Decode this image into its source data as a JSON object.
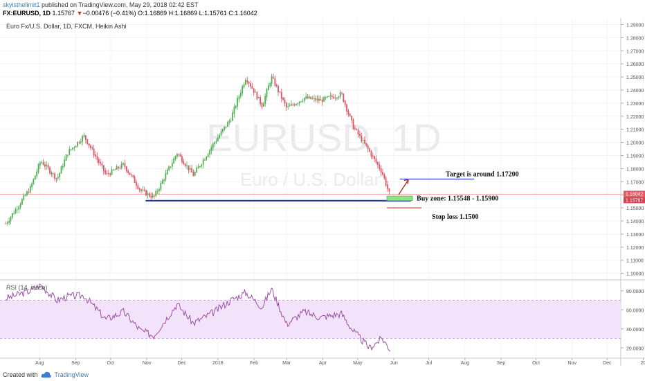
{
  "header": {
    "user": "skyisthelimit1",
    "published": " published on TradingView.com, May 29, 2018 02:42 EST",
    "symbol": "FX:EURUSD, 1D",
    "last": "1.15767",
    "change": "−0.00476 (−0.41%)",
    "ohlc": "O:1.16869 H:1.16869 L:1.15761 C:1.16042"
  },
  "legend": "Euro Fx/U.S. Dollar, 1D, FXCM, Heikin Ashi",
  "watermark": {
    "symbol": "EURUSD, 1D",
    "description": "Euro / U.S. Dollar"
  },
  "footer": {
    "created_with": "Created with",
    "brand": "TradingView"
  },
  "annotations": {
    "target": "Target is around 1.17200",
    "buy_zone": "Buy zone: 1.15548 - 1.15900",
    "stop_loss": "Stop loss 1.1500"
  },
  "price_badges": {
    "close": "1.16042",
    "last": "1.15767"
  },
  "colors": {
    "up": "#4caf50",
    "down": "#e05262",
    "rsi_line": "#9c4fa6",
    "rsi_band": "#f2e3fb",
    "support": "#1f2d9e",
    "target_line": "#2f3fd0",
    "stop_line": "#e53935",
    "buy_zone_fill": "#8ee58c"
  },
  "chart_data": {
    "type": "candlestick",
    "style": "Heikin Ashi",
    "title": "Euro Fx/U.S. Dollar, 1D, FXCM, Heikin Ashi",
    "x_tick_labels": [
      "Aug",
      "Sep",
      "Oct",
      "Nov",
      "Dec",
      "2018",
      "Feb",
      "Mar",
      "Apr",
      "May",
      "Jun",
      "Jul",
      "Aug",
      "Sep",
      "Oct",
      "Nov",
      "Dec",
      "20"
    ],
    "y_tick_labels": [
      "1.29000",
      "1.28000",
      "1.27000",
      "1.26000",
      "1.25000",
      "1.24000",
      "1.23000",
      "1.22000",
      "1.21000",
      "1.20000",
      "1.19000",
      "1.18000",
      "1.17000",
      "1.16000",
      "1.15000",
      "1.14000",
      "1.13000",
      "1.12000",
      "1.11000",
      "1.10000"
    ],
    "ylim": [
      1.095,
      1.295
    ],
    "price_path": [
      [
        "2017-07-03",
        1.138
      ],
      [
        "2017-07-24",
        1.165
      ],
      [
        "2017-08-02",
        1.186
      ],
      [
        "2017-08-16",
        1.172
      ],
      [
        "2017-08-25",
        1.192
      ],
      [
        "2017-09-08",
        1.205
      ],
      [
        "2017-09-27",
        1.175
      ],
      [
        "2017-10-12",
        1.183
      ],
      [
        "2017-10-27",
        1.163
      ],
      [
        "2017-11-07",
        1.158
      ],
      [
        "2017-11-27",
        1.192
      ],
      [
        "2017-12-11",
        1.175
      ],
      [
        "2017-12-29",
        1.2
      ],
      [
        "2018-01-12",
        1.218
      ],
      [
        "2018-01-25",
        1.25
      ],
      [
        "2018-02-08",
        1.228
      ],
      [
        "2018-02-16",
        1.25
      ],
      [
        "2018-03-01",
        1.226
      ],
      [
        "2018-03-16",
        1.234
      ],
      [
        "2018-03-30",
        1.232
      ],
      [
        "2018-04-17",
        1.237
      ],
      [
        "2018-04-27",
        1.212
      ],
      [
        "2018-05-11",
        1.193
      ],
      [
        "2018-05-22",
        1.177
      ],
      [
        "2018-05-29",
        1.158
      ]
    ],
    "levels": {
      "support": 1.15548,
      "buy_zone": [
        1.15548,
        1.159
      ],
      "target": 1.172,
      "stop_loss": 1.15
    },
    "rsi": {
      "label": "RSI (14, close)",
      "y_tick_labels": [
        "80.0000",
        "60.0000",
        "40.0000",
        "20.0000"
      ],
      "band": [
        30,
        70
      ],
      "ylim": [
        10,
        90
      ],
      "path": [
        [
          "2017-07-03",
          72
        ],
        [
          "2017-07-24",
          80
        ],
        [
          "2017-08-02",
          86
        ],
        [
          "2017-08-16",
          70
        ],
        [
          "2017-08-25",
          74
        ],
        [
          "2017-09-08",
          75
        ],
        [
          "2017-09-27",
          50
        ],
        [
          "2017-10-12",
          58
        ],
        [
          "2017-10-27",
          38
        ],
        [
          "2017-11-07",
          33
        ],
        [
          "2017-11-27",
          66
        ],
        [
          "2017-12-11",
          46
        ],
        [
          "2017-12-29",
          58
        ],
        [
          "2018-01-12",
          70
        ],
        [
          "2018-01-25",
          78
        ],
        [
          "2018-02-08",
          63
        ],
        [
          "2018-02-16",
          82
        ],
        [
          "2018-03-01",
          45
        ],
        [
          "2018-03-16",
          58
        ],
        [
          "2018-03-30",
          52
        ],
        [
          "2018-04-17",
          56
        ],
        [
          "2018-04-27",
          38
        ],
        [
          "2018-05-11",
          20
        ],
        [
          "2018-05-22",
          30
        ],
        [
          "2018-05-29",
          18
        ]
      ]
    }
  }
}
